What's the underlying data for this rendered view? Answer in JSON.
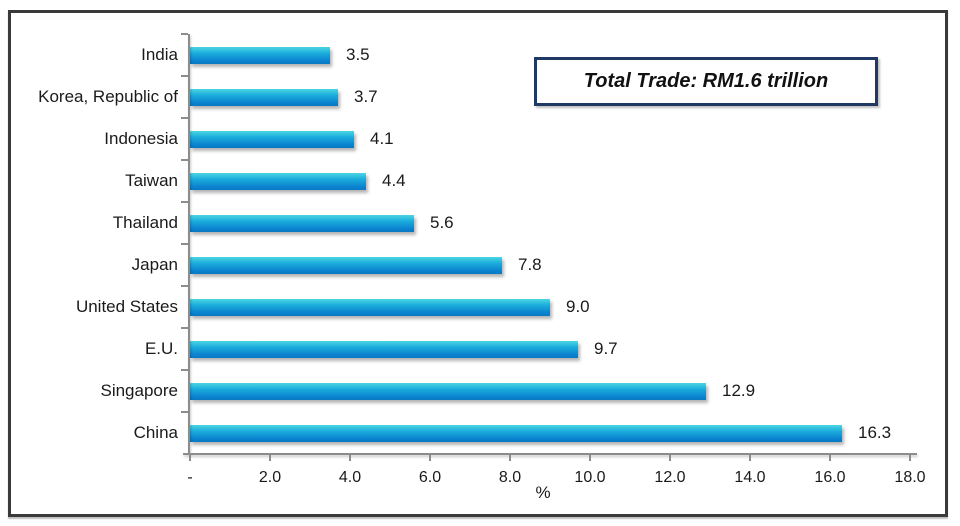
{
  "chart_data": {
    "type": "bar",
    "orientation": "horizontal",
    "title": "",
    "categories": [
      "India",
      "Korea, Republic of",
      "Indonesia",
      "Taiwan",
      "Thailand",
      "Japan",
      "United States",
      "E.U.",
      "Singapore",
      "China"
    ],
    "values": [
      3.5,
      3.7,
      4.1,
      4.4,
      5.6,
      7.8,
      9.0,
      9.7,
      12.9,
      16.3
    ],
    "value_labels": [
      "3.5",
      "3.7",
      "4.1",
      "4.4",
      "5.6",
      "7.8",
      "9.0",
      "9.7",
      "12.9",
      "16.3"
    ],
    "xlabel": "%",
    "ylabel": "",
    "xlim": [
      0,
      18
    ],
    "x_tick_labels": [
      "-",
      "2.0",
      "4.0",
      "6.0",
      "8.0",
      "10.0",
      "12.0",
      "14.0",
      "16.0",
      "18.0"
    ],
    "grid": "off",
    "legend": "none",
    "annotation": "Total Trade: RM1.6 trillion",
    "colors": {
      "bar_top": "#4bd5e3",
      "bar_mid": "#1aabdc",
      "bar_bottom": "#0b83d0",
      "bar_edge_bottom": "#0a78c2",
      "annotation_border": "#1f3864",
      "frame_border": "#3a3a3a",
      "axis": "#8c8c8c",
      "text": "#1a1a1a"
    }
  }
}
